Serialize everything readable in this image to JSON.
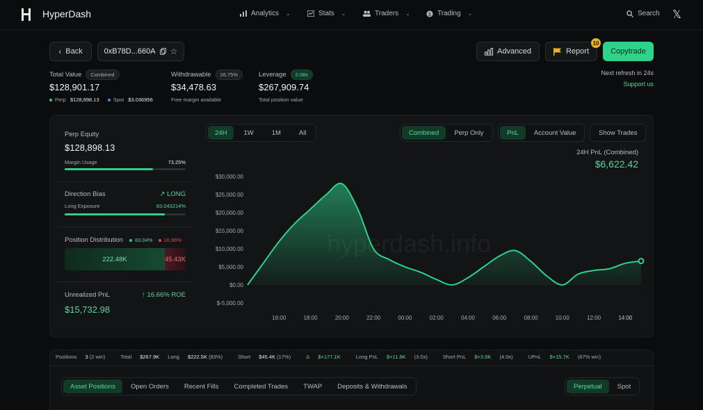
{
  "app": {
    "title": "HyperDash"
  },
  "nav": {
    "items": [
      {
        "label": "Analytics",
        "icon": "bar-chart-icon"
      },
      {
        "label": "Stats",
        "icon": "stats-icon"
      },
      {
        "label": "Traders",
        "icon": "users-icon"
      },
      {
        "label": "Trading",
        "icon": "dollar-icon"
      }
    ],
    "search_label": "Search"
  },
  "toolbar": {
    "back_label": "Back",
    "address": "0xB78D...660A",
    "advanced_label": "Advanced",
    "report_label": "Report",
    "report_badge": "10",
    "copytrade_label": "Copytrade",
    "refresh_text": "Next refresh in 24s",
    "support_label": "Support us"
  },
  "summary": {
    "total_value": {
      "label": "Total Value",
      "pill": "Combined",
      "value": "$128,901.17",
      "perp_label": "Perp",
      "perp_value": "$128,898.13",
      "spot_label": "Spot",
      "spot_value": "$3.036956"
    },
    "withdrawable": {
      "label": "Withdrawable",
      "pill": "26.75%",
      "value": "$34,478.63",
      "sub": "Free margin available"
    },
    "leverage": {
      "label": "Leverage",
      "pill": "2.08x",
      "value": "$267,909.74",
      "sub": "Total position value"
    }
  },
  "left_panel": {
    "perp_equity_label": "Perp Equity",
    "perp_equity_value": "$128,898.13",
    "margin_usage_label": "Margin Usage",
    "margin_usage_value": "73.25%",
    "margin_usage_fraction": 0.7325,
    "direction_bias_label": "Direction Bias",
    "direction_bias_value": "LONG",
    "long_exposure_label": "Long Exposure",
    "long_exposure_value": "83.043214%",
    "long_exposure_fraction": 0.83,
    "position_distribution_label": "Position Distribution",
    "long_pct": "83.04%",
    "short_pct": "16.96%",
    "long_amount": "222.48K",
    "short_amount": "45.43K",
    "long_fraction": 0.8304,
    "unrealized_pnl_label": "Unrealized PnL",
    "roe": "16.66% ROE",
    "unrealized_pnl_value": "$15,732.98"
  },
  "chart_controls": {
    "timeframes": [
      "24H",
      "1W",
      "1M",
      "All"
    ],
    "timeframe_active": "24H",
    "scope": [
      "Combined",
      "Perp Only"
    ],
    "scope_active": "Combined",
    "metric": [
      "PnL",
      "Account Value"
    ],
    "metric_active": "PnL",
    "show_trades_label": "Show Trades",
    "pnl_caption": "24H PnL (Combined)",
    "pnl_value": "$6,622.42",
    "watermark": "hyperdash.info"
  },
  "chart_data": {
    "type": "area",
    "x": [
      "14:00",
      "15:00",
      "16:00",
      "17:00",
      "18:00",
      "19:00",
      "20:00",
      "21:00",
      "22:00",
      "23:00",
      "00:00",
      "01:00",
      "02:00",
      "03:00",
      "04:00",
      "05:00",
      "06:00",
      "07:00",
      "08:00",
      "09:00",
      "10:00",
      "11:00",
      "12:00",
      "13:00",
      "14:00",
      "14:30"
    ],
    "y": [
      0,
      6000,
      12000,
      17000,
      21000,
      25000,
      28000,
      21000,
      10000,
      7000,
      5000,
      3500,
      1500,
      0,
      2000,
      5000,
      8000,
      9500,
      6500,
      2500,
      0,
      3000,
      4000,
      4500,
      6000,
      6622
    ],
    "x_ticks": [
      "14:00",
      "16:00",
      "18:00",
      "20:00",
      "22:00",
      "00:00",
      "02:00",
      "04:00",
      "06:00",
      "08:00",
      "10:00",
      "12:00",
      "14:00"
    ],
    "y_ticks": [
      "$30,000.00",
      "$25,000.00",
      "$20,000.00",
      "$15,000.00",
      "$10,000.00",
      "$5,000.00",
      "$0.00",
      "$-5,000.00"
    ],
    "ylim": [
      -5000,
      30000
    ],
    "color": "#2ed38b"
  },
  "strip": {
    "positions_label": "Positions",
    "positions_count": "3",
    "positions_win": "(2 win)",
    "total_label": "Total",
    "total_value": "$267.9K",
    "long_label": "Long",
    "long_value": "$222.5K",
    "long_pct": "(83%)",
    "short_label": "Short",
    "short_value": "$45.4K",
    "short_pct": "(17%)",
    "delta_label": "Δ",
    "delta_value": "$+177.1K",
    "long_pnl_label": "Long PnL",
    "long_pnl_value": "$+11.8K",
    "long_pnl_x": "(3.0x)",
    "short_pnl_label": "Short PnL",
    "short_pnl_value": "$+3.9K",
    "short_pnl_x": "(4.0x)",
    "upnl_label": "UPnL",
    "upnl_value": "$+15.7K",
    "upnl_win": "(67% win)"
  },
  "tabs": {
    "items": [
      "Asset Positions",
      "Open Orders",
      "Recent Fills",
      "Completed Trades",
      "TWAP",
      "Deposits & Withdrawals"
    ],
    "active": "Asset Positions",
    "market": [
      "Perpetual",
      "Spot"
    ],
    "market_active": "Perpetual"
  }
}
